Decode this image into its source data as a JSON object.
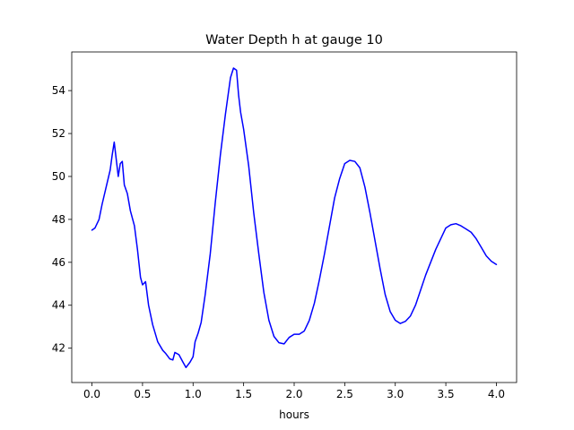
{
  "chart_data": {
    "type": "line",
    "title": "Water Depth h at gauge 10",
    "xlabel": "hours",
    "ylabel": "",
    "xlim": [
      -0.2,
      4.2
    ],
    "ylim": [
      40.4,
      55.8
    ],
    "xticks": [
      0.0,
      0.5,
      1.0,
      1.5,
      2.0,
      2.5,
      3.0,
      3.5,
      4.0
    ],
    "xtick_labels": [
      "0.0",
      "0.5",
      "1.0",
      "1.5",
      "2.0",
      "2.5",
      "3.0",
      "3.5",
      "4.0"
    ],
    "yticks": [
      42,
      44,
      46,
      48,
      50,
      52,
      54
    ],
    "ytick_labels": [
      "42",
      "44",
      "46",
      "48",
      "50",
      "52",
      "54"
    ],
    "grid": false,
    "series": [
      {
        "color": "#0000ff",
        "x": [
          0.0,
          0.03,
          0.07,
          0.1,
          0.14,
          0.18,
          0.2,
          0.22,
          0.24,
          0.26,
          0.28,
          0.3,
          0.32,
          0.35,
          0.38,
          0.42,
          0.45,
          0.48,
          0.5,
          0.53,
          0.56,
          0.6,
          0.65,
          0.7,
          0.73,
          0.77,
          0.8,
          0.82,
          0.86,
          0.9,
          0.93,
          0.97,
          1.0,
          1.02,
          1.05,
          1.08,
          1.12,
          1.17,
          1.22,
          1.27,
          1.32,
          1.37,
          1.4,
          1.43,
          1.45,
          1.47,
          1.5,
          1.55,
          1.6,
          1.65,
          1.7,
          1.75,
          1.8,
          1.85,
          1.9,
          1.95,
          2.0,
          2.05,
          2.1,
          2.15,
          2.2,
          2.25,
          2.3,
          2.35,
          2.4,
          2.45,
          2.5,
          2.55,
          2.6,
          2.65,
          2.7,
          2.75,
          2.8,
          2.85,
          2.9,
          2.95,
          3.0,
          3.05,
          3.1,
          3.15,
          3.2,
          3.25,
          3.3,
          3.35,
          3.4,
          3.45,
          3.5,
          3.55,
          3.6,
          3.65,
          3.7,
          3.75,
          3.8,
          3.85,
          3.9,
          3.95,
          4.0
        ],
        "y": [
          47.5,
          47.6,
          48.0,
          48.7,
          49.5,
          50.3,
          51.0,
          51.6,
          50.8,
          50.0,
          50.6,
          50.7,
          49.6,
          49.2,
          48.4,
          47.7,
          46.6,
          45.3,
          44.95,
          45.1,
          44.0,
          43.1,
          42.3,
          41.9,
          41.75,
          41.5,
          41.45,
          41.8,
          41.7,
          41.35,
          41.1,
          41.35,
          41.6,
          42.3,
          42.7,
          43.2,
          44.5,
          46.4,
          48.8,
          51.0,
          52.9,
          54.6,
          55.05,
          54.95,
          53.8,
          53.0,
          52.2,
          50.5,
          48.3,
          46.4,
          44.6,
          43.3,
          42.55,
          42.25,
          42.2,
          42.5,
          42.65,
          42.65,
          42.8,
          43.3,
          44.1,
          45.2,
          46.4,
          47.7,
          49.0,
          49.9,
          50.6,
          50.75,
          50.7,
          50.4,
          49.5,
          48.3,
          47.0,
          45.7,
          44.5,
          43.7,
          43.3,
          43.15,
          43.25,
          43.5,
          44.0,
          44.7,
          45.4,
          46.0,
          46.6,
          47.1,
          47.6,
          47.75,
          47.8,
          47.7,
          47.55,
          47.4,
          47.1,
          46.7,
          46.3,
          46.05,
          45.9
        ]
      }
    ]
  }
}
